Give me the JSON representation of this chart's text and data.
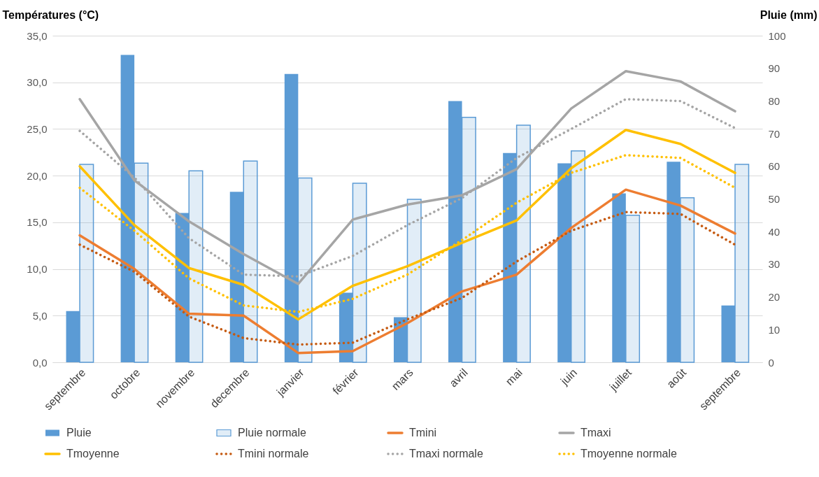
{
  "chart_data": {
    "type": "line",
    "categories": [
      "septembre",
      "octobre",
      "novembre",
      "decembre",
      "janvier",
      "février",
      "mars",
      "avril",
      "mai",
      "juin",
      "juillet",
      "août",
      "septembre"
    ],
    "ylabel": "Températures (°C)",
    "y2label": "Pluie (mm)",
    "ylim": [
      0,
      35
    ],
    "yticks": [
      {
        "value": 0,
        "label": "0,0"
      },
      {
        "value": 5,
        "label": "5,0"
      },
      {
        "value": 10,
        "label": "10,0"
      },
      {
        "value": 15,
        "label": "15,0"
      },
      {
        "value": 20,
        "label": "20,0"
      },
      {
        "value": 25,
        "label": "25,0"
      },
      {
        "value": 30,
        "label": "30,0"
      },
      {
        "value": 35,
        "label": "35,0"
      }
    ],
    "y2lim": [
      0,
      100
    ],
    "y2ticks": [
      0,
      10,
      20,
      30,
      40,
      50,
      60,
      70,
      80,
      90,
      100
    ],
    "grid": "y",
    "legend": "bottom",
    "series": [
      {
        "name": "Pluie",
        "type": "bar",
        "axis": "y2",
        "color": "#5b9bd5",
        "values": [
          15.7,
          94.1,
          45.7,
          52.2,
          88.3,
          21.3,
          13.8,
          80.0,
          64.1,
          60.9,
          51.7,
          61.4,
          17.4
        ]
      },
      {
        "name": "Pluie normale",
        "type": "bar",
        "axis": "y2",
        "line_style": "dotted",
        "color": "#5b9bd5",
        "values": [
          60.6,
          61.0,
          58.6,
          61.6,
          56.4,
          54.8,
          49.9,
          75.0,
          72.6,
          64.7,
          45.0,
          50.4,
          60.6
        ]
      },
      {
        "name": "Tmini",
        "color": "#ed7d31",
        "values": [
          13.6,
          10.0,
          5.2,
          5.0,
          1.0,
          1.2,
          4.2,
          7.6,
          9.4,
          14.4,
          18.5,
          16.8,
          13.8
        ]
      },
      {
        "name": "Tmaxi",
        "color": "#a5a5a5",
        "values": [
          28.2,
          19.5,
          15.1,
          11.6,
          8.4,
          15.3,
          16.9,
          17.9,
          20.7,
          27.2,
          31.2,
          30.1,
          26.9
        ]
      },
      {
        "name": "Tmoyenne",
        "color": "#ffc000",
        "values": [
          21.0,
          14.7,
          10.1,
          8.3,
          4.6,
          8.2,
          10.3,
          12.8,
          15.2,
          20.8,
          24.9,
          23.4,
          20.3
        ]
      },
      {
        "name": "Tmini normale",
        "line_style": "dotted",
        "color": "#c55a11",
        "values": [
          12.6,
          9.7,
          4.9,
          2.6,
          1.9,
          2.1,
          4.6,
          6.9,
          10.8,
          14.1,
          16.1,
          15.9,
          12.6
        ]
      },
      {
        "name": "Tmaxi normale",
        "line_style": "dotted",
        "color": "#a5a5a5",
        "values": [
          24.8,
          19.8,
          13.3,
          9.4,
          9.2,
          11.4,
          14.7,
          17.6,
          21.9,
          25.0,
          28.2,
          28.0,
          25.1
        ]
      },
      {
        "name": "Tmoyenne normale",
        "line_style": "dotted",
        "color": "#ffc000",
        "values": [
          18.7,
          14.1,
          9.0,
          6.1,
          5.4,
          6.8,
          9.4,
          13.1,
          17.1,
          20.3,
          22.2,
          21.9,
          18.7
        ]
      }
    ]
  }
}
